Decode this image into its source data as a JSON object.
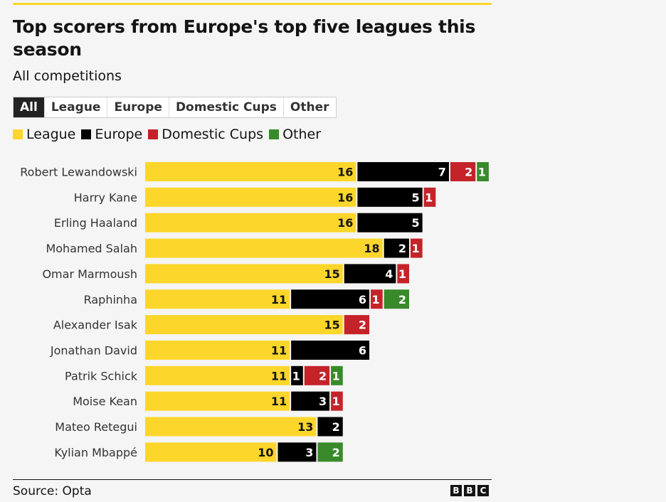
{
  "title": "Top scorers from Europe's top five leagues this season",
  "subtitle": "All competitions",
  "tabs": [
    "All",
    "League",
    "Europe",
    "Domestic Cups",
    "Other"
  ],
  "active_tab": "All",
  "source": "Source: Opta",
  "brand": [
    "B",
    "B",
    "C"
  ],
  "chart_data": {
    "type": "bar",
    "orientation": "horizontal",
    "stacked": true,
    "title": "Top scorers from Europe's top five leagues this season",
    "subtitle": "All competitions",
    "xlabel": "",
    "ylabel": "",
    "legend_position": "top",
    "categories": [
      "Robert Lewandowski",
      "Harry Kane",
      "Erling Haaland",
      "Mohamed Salah",
      "Omar Marmoush",
      "Raphinha",
      "Alexander Isak",
      "Jonathan David",
      "Patrik Schick",
      "Moise Kean",
      "Mateo Retegui",
      "Kylian Mbappé"
    ],
    "series": [
      {
        "name": "League",
        "color": "#fdd62c",
        "label_color": "#141414",
        "values": [
          16,
          16,
          16,
          18,
          15,
          11,
          15,
          11,
          11,
          11,
          13,
          10
        ]
      },
      {
        "name": "Europe",
        "color": "#000000",
        "label_color": "#ffffff",
        "values": [
          7,
          5,
          5,
          2,
          4,
          6,
          0,
          6,
          1,
          3,
          2,
          3
        ]
      },
      {
        "name": "Domestic Cups",
        "color": "#c4232a",
        "label_color": "#ffffff",
        "values": [
          2,
          1,
          0,
          1,
          1,
          1,
          2,
          0,
          2,
          1,
          0,
          0
        ]
      },
      {
        "name": "Other",
        "color": "#388a2a",
        "label_color": "#ffffff",
        "values": [
          1,
          0,
          0,
          0,
          0,
          2,
          0,
          0,
          1,
          0,
          0,
          2
        ]
      }
    ]
  }
}
